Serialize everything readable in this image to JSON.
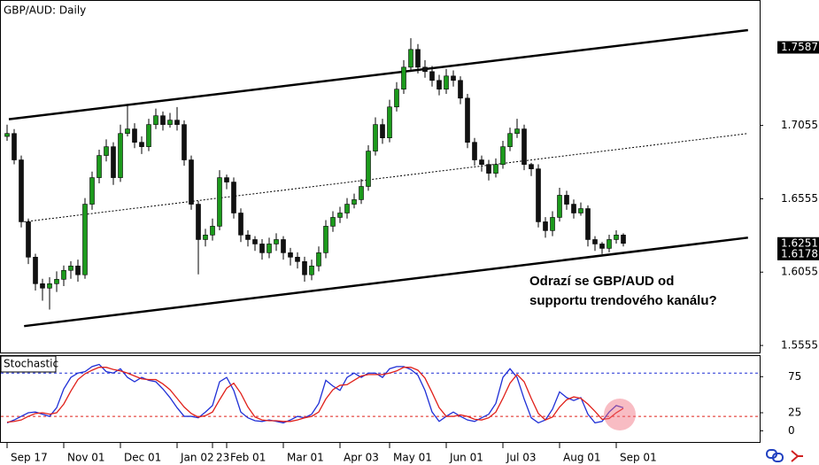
{
  "chart_data": [
    {
      "type": "candlestick",
      "title": "GBP/AUD: Daily",
      "categories": [
        "Sep 17",
        null,
        null,
        null,
        null,
        null,
        null,
        null,
        "Nov 01",
        null,
        null,
        null,
        null,
        null,
        null,
        null,
        "Dec 01",
        null,
        null,
        null,
        null,
        null,
        null,
        null,
        "Jan 02",
        null,
        null,
        null,
        null,
        "23",
        null,
        "Feb 01",
        null,
        null,
        null,
        null,
        null,
        null,
        null,
        "Mar 01",
        null,
        null,
        null,
        null,
        null,
        null,
        null,
        "Apr 03",
        null,
        null,
        null,
        null,
        null,
        null,
        "May 01",
        null,
        null,
        null,
        null,
        null,
        null,
        null,
        "Jun 01",
        null,
        null,
        null,
        null,
        null,
        null,
        null,
        "Jul 03",
        null,
        null,
        null,
        null,
        null,
        null,
        null,
        "Aug 01",
        null,
        null,
        null,
        null,
        null,
        null,
        null,
        "Sep 01",
        null
      ],
      "open": [
        1.698,
        1.7,
        1.682,
        1.6398,
        1.6157,
        1.5976,
        1.5946,
        1.5976,
        1.6006,
        1.6067,
        1.6097,
        1.6037,
        1.6518,
        1.6699,
        1.685,
        1.691,
        1.6699,
        1.7,
        1.7031,
        1.694,
        1.691,
        1.7061,
        1.7121,
        1.7061,
        1.7091,
        1.7061,
        1.682,
        1.6518,
        1.6277,
        1.6308,
        1.6368,
        1.6699,
        1.6669,
        1.6458,
        1.6308,
        1.6277,
        1.6247,
        1.6187,
        1.6247,
        1.6277,
        1.6187,
        1.6157,
        1.6127,
        1.6037,
        1.6097,
        1.6187,
        1.6368,
        1.6428,
        1.6458,
        1.6518,
        1.6549,
        1.6639,
        1.688,
        1.7061,
        1.697,
        1.7181,
        1.7302,
        1.7452,
        1.7573,
        1.7452,
        1.7422,
        1.7362,
        1.7302,
        1.7392,
        1.7362,
        1.7241,
        1.694,
        1.682,
        1.6789,
        1.6729,
        1.6789,
        1.691,
        1.7,
        1.7031,
        1.6789,
        1.6759,
        1.6398,
        1.6338,
        1.6428,
        1.6579,
        1.6518,
        1.6458,
        1.6488,
        1.6277,
        1.6247,
        1.6217,
        1.6277,
        1.6308
      ],
      "high": [
        1.706,
        1.703,
        1.685,
        1.642,
        1.618,
        1.601,
        1.602,
        1.606,
        1.61,
        1.613,
        1.614,
        1.656,
        1.674,
        1.689,
        1.696,
        1.694,
        1.706,
        1.719,
        1.707,
        1.698,
        1.71,
        1.717,
        1.715,
        1.714,
        1.718,
        1.709,
        1.685,
        1.654,
        1.635,
        1.642,
        1.675,
        1.672,
        1.67,
        1.649,
        1.634,
        1.63,
        1.628,
        1.629,
        1.632,
        1.63,
        1.622,
        1.619,
        1.616,
        1.614,
        1.623,
        1.641,
        1.647,
        1.65,
        1.656,
        1.659,
        1.669,
        1.692,
        1.711,
        1.71,
        1.723,
        1.735,
        1.75,
        1.765,
        1.761,
        1.75,
        1.746,
        1.74,
        1.744,
        1.743,
        1.739,
        1.727,
        1.697,
        1.685,
        1.682,
        1.683,
        1.695,
        1.704,
        1.71,
        1.706,
        1.68,
        1.679,
        1.643,
        1.647,
        1.663,
        1.661,
        1.655,
        1.653,
        1.651,
        1.63,
        1.626,
        1.631,
        1.634,
        1.632
      ],
      "low": [
        1.695,
        1.679,
        1.636,
        1.611,
        1.593,
        1.586,
        1.58,
        1.592,
        1.596,
        1.601,
        1.599,
        1.601,
        1.648,
        1.666,
        1.681,
        1.665,
        1.667,
        1.698,
        1.69,
        1.686,
        1.688,
        1.703,
        1.702,
        1.704,
        1.702,
        1.678,
        1.648,
        1.604,
        1.623,
        1.627,
        1.634,
        1.662,
        1.642,
        1.626,
        1.623,
        1.62,
        1.614,
        1.615,
        1.62,
        1.614,
        1.61,
        1.608,
        1.599,
        1.6,
        1.606,
        1.615,
        1.633,
        1.639,
        1.642,
        1.649,
        1.652,
        1.661,
        1.685,
        1.693,
        1.694,
        1.715,
        1.727,
        1.742,
        1.741,
        1.738,
        1.732,
        1.726,
        1.727,
        1.732,
        1.72,
        1.69,
        1.678,
        1.674,
        1.668,
        1.67,
        1.676,
        1.688,
        1.697,
        1.675,
        1.671,
        1.636,
        1.629,
        1.63,
        1.64,
        1.648,
        1.642,
        1.644,
        1.623,
        1.62,
        1.6178,
        1.619,
        1.625,
        1.623
      ],
      "close": [
        1.7,
        1.682,
        1.6398,
        1.6157,
        1.5976,
        1.5946,
        1.5976,
        1.6006,
        1.6067,
        1.6097,
        1.6037,
        1.6518,
        1.6699,
        1.685,
        1.691,
        1.6699,
        1.7,
        1.7031,
        1.694,
        1.691,
        1.7061,
        1.7121,
        1.7061,
        1.7091,
        1.7061,
        1.682,
        1.6518,
        1.6277,
        1.6308,
        1.6368,
        1.6699,
        1.6669,
        1.6458,
        1.6308,
        1.6277,
        1.6247,
        1.6187,
        1.6247,
        1.6277,
        1.6187,
        1.6157,
        1.6127,
        1.6037,
        1.6097,
        1.6187,
        1.6368,
        1.6428,
        1.6458,
        1.6518,
        1.6549,
        1.6639,
        1.688,
        1.7061,
        1.697,
        1.7181,
        1.7302,
        1.7452,
        1.7573,
        1.7452,
        1.7422,
        1.7362,
        1.7302,
        1.7392,
        1.7362,
        1.7241,
        1.694,
        1.682,
        1.6789,
        1.6729,
        1.6789,
        1.691,
        1.7,
        1.7031,
        1.6789,
        1.6759,
        1.6398,
        1.6338,
        1.6428,
        1.6579,
        1.6518,
        1.6458,
        1.6488,
        1.6277,
        1.6247,
        1.6217,
        1.6277,
        1.6308,
        1.6251
      ],
      "up_color": "#1c9a1c",
      "down_color": "#111111",
      "ylim": [
        1.5507,
        1.7904
      ],
      "yticks": [
        1.5555,
        1.6055,
        1.6555,
        1.7055
      ],
      "price_labels": [
        1.7587,
        1.6251,
        1.6178
      ],
      "trendlines": [
        {
          "x": [
            0.25,
            104.6
          ],
          "y": [
            1.7097,
            1.7705
          ],
          "style": "solid"
        },
        {
          "x": [
            2.4,
            104.6
          ],
          "y": [
            1.5687,
            1.629
          ],
          "style": "solid"
        },
        {
          "x": [
            2.4,
            104.6
          ],
          "y": [
            1.6398,
            1.7
          ],
          "style": "dotted"
        }
      ],
      "annotation": [
        "Odrazí se GBP/AUD od",
        "supportu trendového kanálu?"
      ]
    },
    {
      "type": "line",
      "title": "Stochastic",
      "series": [
        {
          "color": "#1f2fd6",
          "values": [
            11,
            15,
            20,
            25,
            26,
            23,
            20,
            32,
            58,
            74,
            80,
            82,
            89,
            92,
            82,
            80,
            86,
            74,
            68,
            74,
            70,
            68,
            58,
            46,
            32,
            20,
            20,
            18,
            26,
            35,
            68,
            74,
            56,
            26,
            18,
            14,
            13,
            15,
            13,
            11,
            15,
            20,
            18,
            23,
            38,
            70,
            62,
            56,
            74,
            80,
            74,
            80,
            80,
            74,
            86,
            89,
            89,
            85,
            77,
            56,
            26,
            13,
            20,
            26,
            20,
            15,
            13,
            18,
            23,
            38,
            74,
            86,
            74,
            44,
            18,
            11,
            15,
            30,
            54,
            46,
            42,
            46,
            23,
            11,
            13,
            26,
            35,
            32
          ]
        },
        {
          "color": "#e0201a",
          "values": [
            12,
            13,
            15,
            20,
            24,
            25,
            23,
            25,
            37,
            55,
            71,
            79,
            84,
            88,
            88,
            85,
            83,
            80,
            76,
            72,
            71,
            71,
            65,
            57,
            45,
            33,
            24,
            19,
            21,
            26,
            43,
            59,
            66,
            52,
            33,
            19,
            15,
            14,
            14,
            13,
            13,
            15,
            18,
            20,
            26,
            44,
            57,
            63,
            64,
            70,
            76,
            78,
            78,
            78,
            80,
            83,
            88,
            88,
            84,
            73,
            53,
            32,
            20,
            20,
            22,
            20,
            16,
            15,
            18,
            26,
            45,
            66,
            78,
            68,
            45,
            24,
            15,
            19,
            33,
            43,
            47,
            45,
            37,
            27,
            16,
            17,
            25,
            31
          ]
        }
      ],
      "ylim": [
        -15.5,
        103.6
      ],
      "yticks": [
        0,
        25,
        75
      ],
      "levels": [
        80,
        20
      ],
      "level_colors": [
        "#1f2fd6",
        "#e0201a"
      ]
    }
  ]
}
